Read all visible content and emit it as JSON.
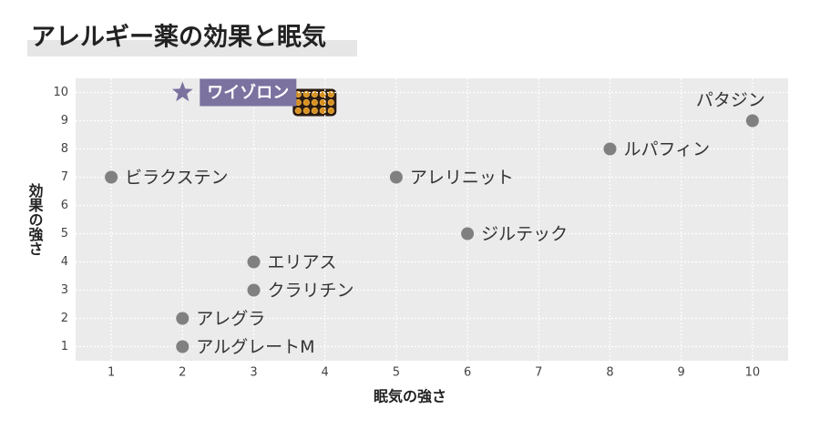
{
  "chart_data": {
    "type": "scatter",
    "title": "アレルギー薬の効果と眠気",
    "x_label": "眠気の強さ",
    "y_label": "効果の強さ",
    "labels": [
      "ワイゾロン",
      "パタジン",
      "ルパフィン",
      "ビラクステン",
      "アレリニット",
      "ジルテック",
      "エリアス",
      "クラリチン",
      "アレグラ",
      "アルグレートM"
    ],
    "x": [
      2,
      10,
      8,
      1,
      5,
      6,
      3,
      3,
      2,
      2
    ],
    "y": [
      10,
      9,
      8,
      7,
      7,
      5,
      4,
      3,
      2,
      1
    ],
    "markers": [
      "star",
      "circle",
      "circle",
      "circle",
      "circle",
      "circle",
      "circle",
      "circle",
      "circle",
      "circle"
    ],
    "color": "#808080",
    "highlight_color": "#7b72a0",
    "xlim": [
      0.5,
      10.5
    ],
    "ylim": [
      0.5,
      10.5
    ],
    "xticks": [
      1,
      2,
      3,
      4,
      5,
      6,
      7,
      8,
      9,
      10
    ],
    "yticks": [
      1,
      2,
      3,
      4,
      5,
      6,
      7,
      8,
      9,
      10
    ],
    "grid": true
  }
}
